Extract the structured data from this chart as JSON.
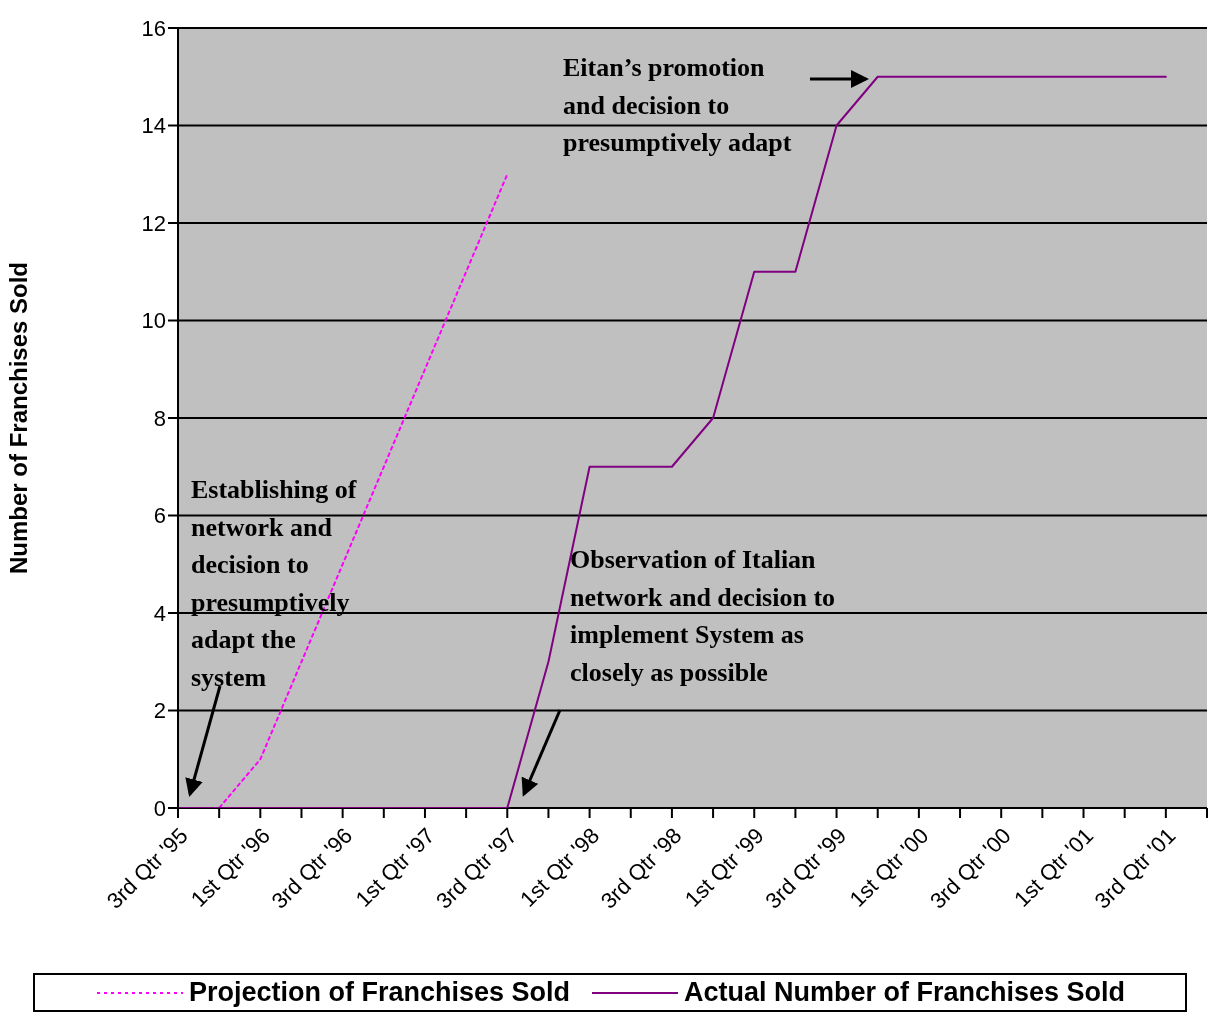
{
  "chart_data": {
    "type": "line",
    "ylabel": "Number of Franchises Sold",
    "categories": [
      "3rd Qtr '95",
      null,
      "1st Qtr '96",
      null,
      "3rd Qtr '96",
      null,
      "1st Qtr '97",
      null,
      "3rd Qtr '97",
      null,
      "1st Qtr '98",
      null,
      "3rd Qtr '98",
      null,
      "1st Qtr '99",
      null,
      "3rd Qtr '99",
      null,
      "1st Qtr '00",
      null,
      "3rd Qtr '00",
      null,
      "1st Qtr '01",
      null,
      "3rd Qtr '01",
      null
    ],
    "series": [
      {
        "name": "Projection of Franchises Sold",
        "color": "#ff00ff",
        "line_style": "dotted",
        "values": [
          0,
          0,
          1,
          3,
          5,
          7,
          9,
          11,
          13,
          null,
          null,
          null,
          null,
          null,
          null,
          null,
          null,
          null,
          null,
          null,
          null,
          null,
          null,
          null,
          null,
          null
        ]
      },
      {
        "name": "Actual Number of Franchises Sold",
        "color": "#800080",
        "line_style": "solid",
        "values": [
          0,
          0,
          0,
          0,
          0,
          0,
          0,
          0,
          0,
          3,
          7,
          7,
          7,
          8,
          11,
          11,
          14,
          15,
          15,
          15,
          15,
          15,
          15,
          15,
          15,
          null
        ]
      }
    ],
    "ylim": [
      0,
      16
    ],
    "yticks": [
      0,
      2,
      4,
      6,
      8,
      10,
      12,
      14,
      16
    ],
    "grid": "y",
    "legend": "bottom",
    "marker": "none",
    "annotations": [
      "Establishing of\nnetwork and\ndecision to\npresumptively\nadapt the\nsystem",
      "Observation of Italian\nnetwork and decision to\nimplement System as\nclosely as possible",
      "Eitan’s promotion\nand decision to\npresumptively adapt"
    ]
  }
}
